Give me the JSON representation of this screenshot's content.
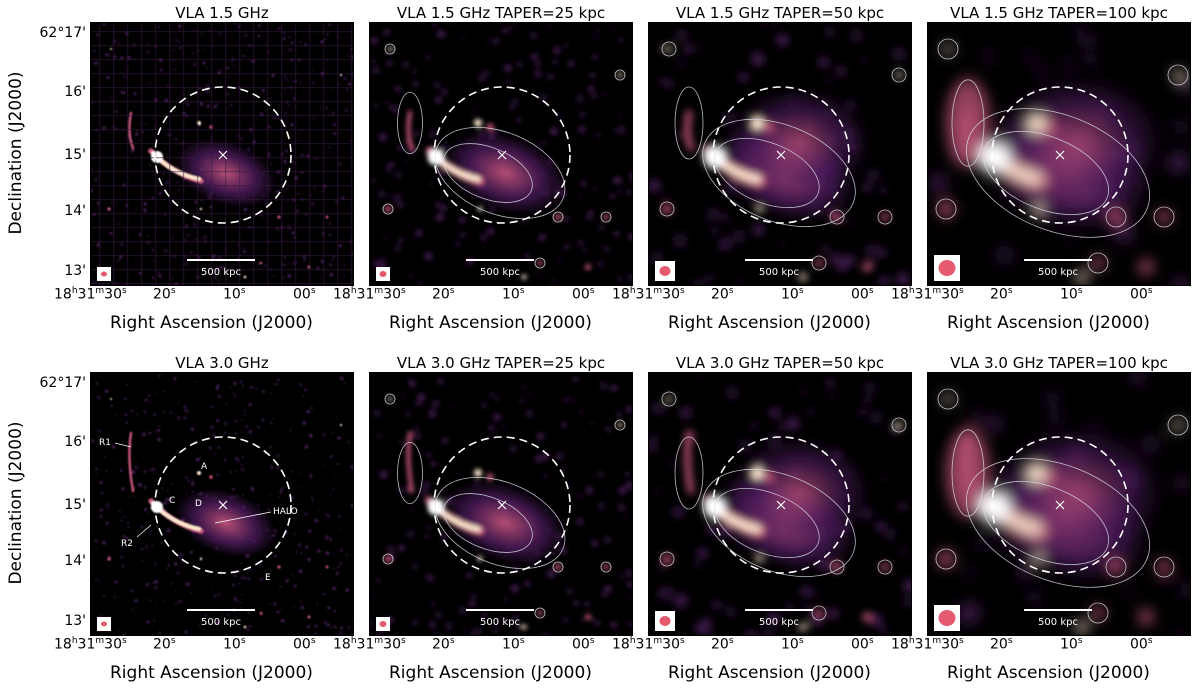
{
  "row1": {
    "titles": [
      "VLA 1.5 GHz",
      "VLA 1.5 GHz TAPER=25 kpc",
      "VLA 1.5 GHz TAPER=50 kpc",
      "VLA 1.5 GHz TAPER=100 kpc"
    ]
  },
  "row2": {
    "titles": [
      "VLA 3.0 GHz",
      "VLA 3.0 GHz TAPER=25 kpc",
      "VLA 3.0 GHz TAPER=50 kpc",
      "VLA 3.0 GHz TAPER=100 kpc"
    ]
  },
  "axes": {
    "ylabel": "Declination (J2000)",
    "xlabel": "Right Ascension (J2000)",
    "yticks": [
      "62°17'",
      "16'",
      "15'",
      "14'",
      "13'"
    ],
    "xtick_hms_h": "18",
    "xtick_hms_m": "31",
    "xtick_first_s": "30",
    "xticks_rest": [
      "20",
      "10",
      "00"
    ],
    "xtick_last_h": "18"
  },
  "scale_bar": "500 kpc",
  "annotations": [
    "R1",
    "A",
    "C",
    "D",
    "HALO",
    "R2",
    "E"
  ],
  "colors": {
    "background": "#000000",
    "emission_low": "#4b1a5c",
    "emission_mid": "#c2547a",
    "emission_high": "#fde6cf",
    "beam": "#e55a6e",
    "contour": "#d9d9e6"
  }
}
